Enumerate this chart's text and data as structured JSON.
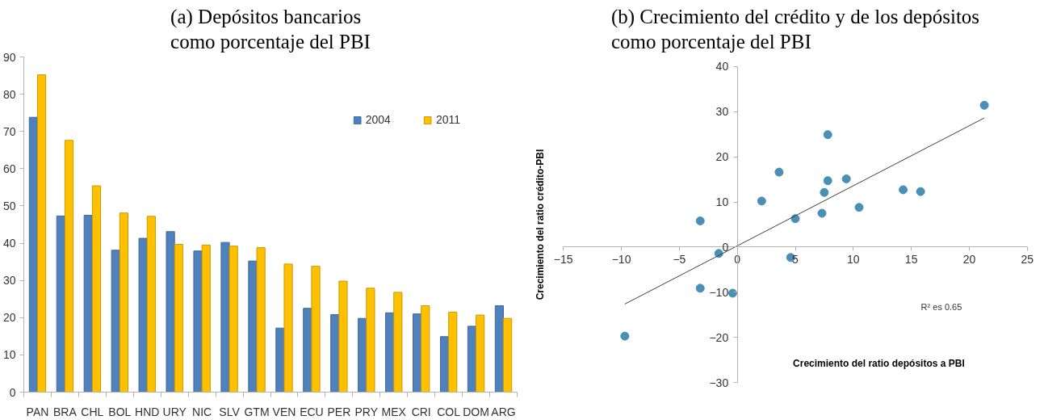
{
  "chart_data": [
    {
      "type": "bar",
      "title": "(a) Depósitos bancarios\ncomo porcentaje del PBI",
      "categories": [
        "PAN",
        "BRA",
        "CHL",
        "BOL",
        "HND",
        "URY",
        "NIC",
        "SLV",
        "GTM",
        "VEN",
        "ECU",
        "PER",
        "PRY",
        "MEX",
        "CRI",
        "COL",
        "DOM",
        "ARG"
      ],
      "series": [
        {
          "name": "2004",
          "color": "#4f81bd",
          "values": [
            73.8,
            47.3,
            47.5,
            38.1,
            41.3,
            43.1,
            37.9,
            40.2,
            35.2,
            17.2,
            22.5,
            20.8,
            19.8,
            21.3,
            21.0,
            14.9,
            17.7,
            23.2
          ]
        },
        {
          "name": "2011",
          "color": "#ffc000",
          "values": [
            85.2,
            67.6,
            55.4,
            48.1,
            47.2,
            39.7,
            39.5,
            39.2,
            38.8,
            34.4,
            33.8,
            29.8,
            27.9,
            26.8,
            23.2,
            21.5,
            20.7,
            19.8
          ]
        }
      ],
      "ylim": [
        0,
        90
      ],
      "yticks": [
        0,
        10,
        20,
        30,
        40,
        50,
        60,
        70,
        80,
        90
      ],
      "legend": "top right"
    },
    {
      "type": "scatter",
      "title": "(b) Crecimiento del crédito y de los depósitos\ncomo porcentaje del PBI",
      "xlabel": "Crecimiento del ratio depósitos a PBI",
      "ylabel": "Crecimiento del ratio crédito-PBI",
      "series": [
        {
          "color": "#4a8fb5",
          "marker": "circle",
          "x": [
            -9.7,
            -3.2,
            -1.6,
            -3.2,
            -0.4,
            2.1,
            3.6,
            5.0,
            4.6,
            7.8,
            7.8,
            7.5,
            7.3,
            9.4,
            10.5,
            14.3,
            15.8,
            21.3
          ],
          "values": [
            -19.7,
            5.8,
            -1.4,
            -9.1,
            -10.2,
            10.2,
            16.6,
            6.3,
            -2.3,
            24.9,
            14.7,
            12.1,
            7.5,
            15.1,
            8.8,
            12.7,
            12.3,
            31.4
          ]
        },
        {
          "type": "line",
          "color": "#404040",
          "x": [
            -9.7,
            21.3
          ],
          "values": [
            -12.6,
            28.6
          ]
        }
      ],
      "xlim": [
        -15,
        25
      ],
      "ylim": [
        -30,
        40
      ],
      "xticks": [
        -15,
        -10,
        -5,
        0,
        5,
        10,
        15,
        20,
        25
      ],
      "yticks": [
        -30,
        -20,
        -10,
        0,
        10,
        20,
        30,
        40
      ],
      "annotations": [
        "R² es 0.65"
      ]
    }
  ]
}
